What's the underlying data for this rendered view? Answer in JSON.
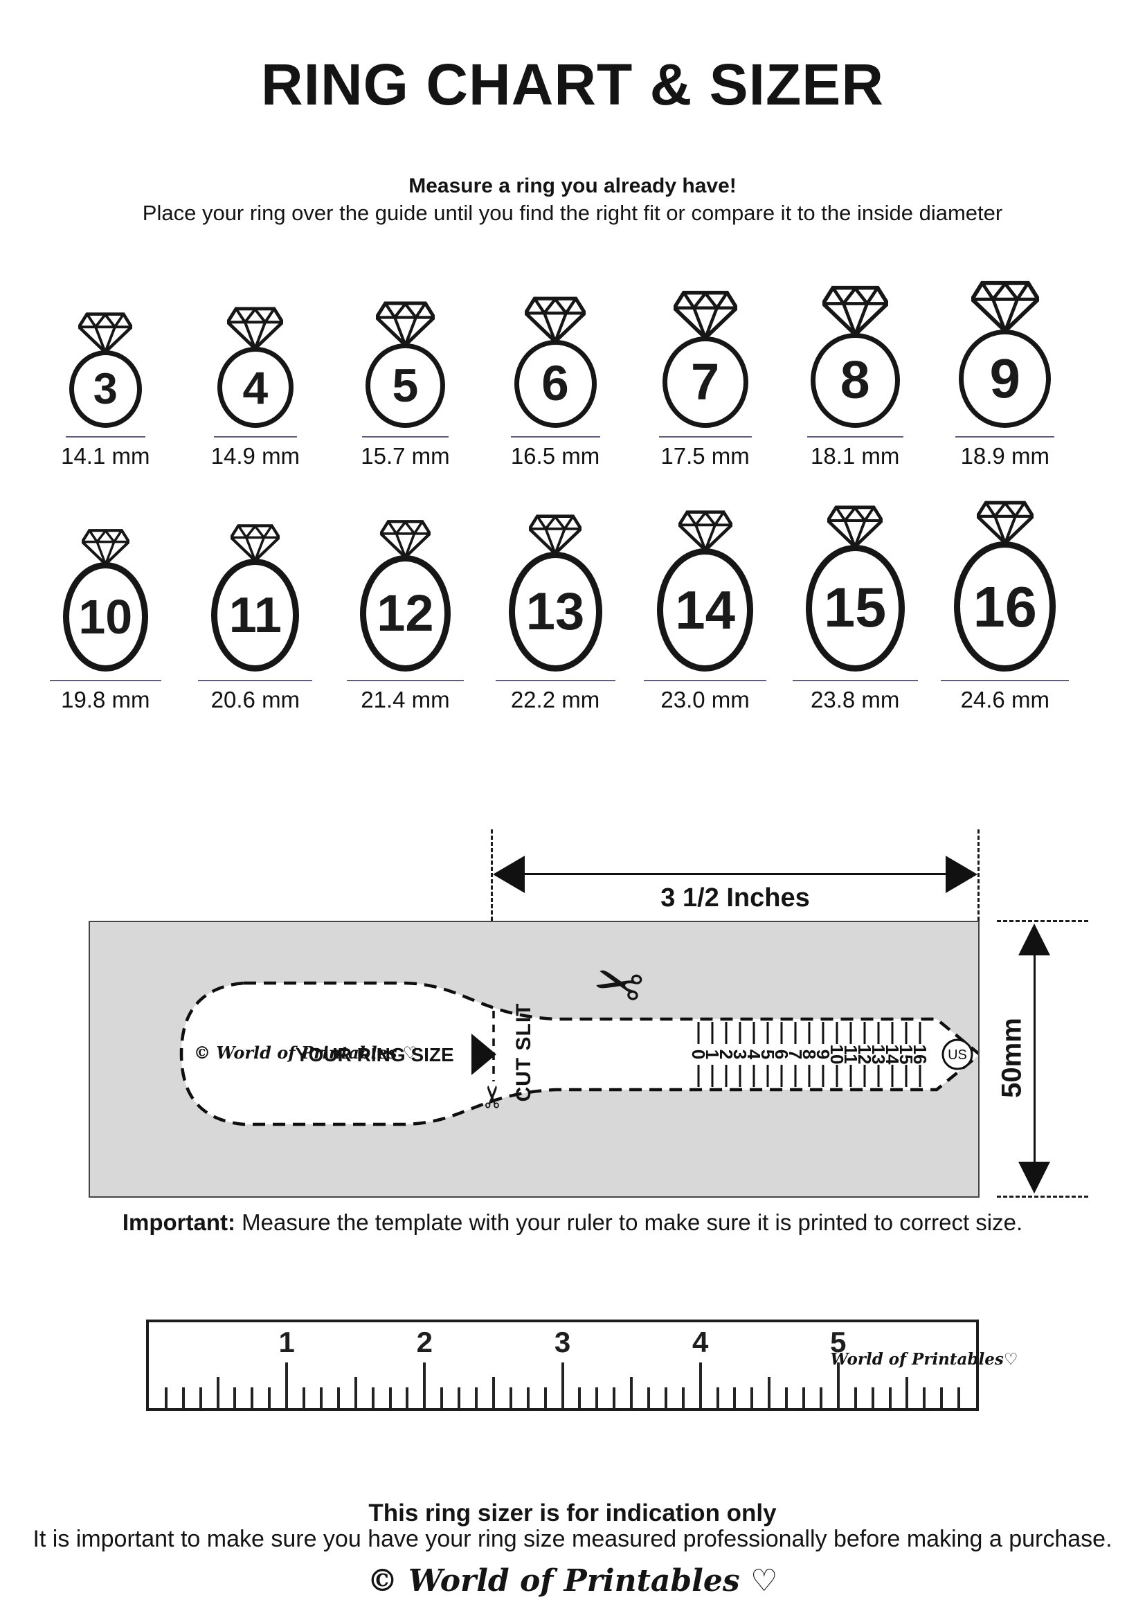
{
  "title": "RING CHART & SIZER",
  "intro": {
    "heading": "Measure a ring you already have!",
    "body": "Place your ring over the guide until you find the right fit or compare it to the inside diameter"
  },
  "ring_chart": {
    "rows": [
      {
        "rings": [
          {
            "size": "3",
            "diameter_label": "14.1 mm"
          },
          {
            "size": "4",
            "diameter_label": "14.9 mm"
          },
          {
            "size": "5",
            "diameter_label": "15.7 mm"
          },
          {
            "size": "6",
            "diameter_label": "16.5 mm"
          },
          {
            "size": "7",
            "diameter_label": "17.5 mm"
          },
          {
            "size": "8",
            "diameter_label": "18.1 mm"
          },
          {
            "size": "9",
            "diameter_label": "18.9 mm"
          }
        ]
      },
      {
        "rings": [
          {
            "size": "10",
            "diameter_label": "19.8 mm"
          },
          {
            "size": "11",
            "diameter_label": "20.6 mm"
          },
          {
            "size": "12",
            "diameter_label": "21.4 mm"
          },
          {
            "size": "13",
            "diameter_label": "22.2 mm"
          },
          {
            "size": "14",
            "diameter_label": "23.0 mm"
          },
          {
            "size": "15",
            "diameter_label": "23.8 mm"
          },
          {
            "size": "16",
            "diameter_label": "24.6 mm"
          }
        ]
      }
    ]
  },
  "sizer": {
    "width_label": "3 1/2 Inches",
    "height_label": "50mm",
    "brand": "© World of Printables ♡",
    "instruction": "YOUR RING SIZE",
    "cut_label": "CUT SLIT",
    "us_label": "US",
    "scale_numbers": [
      "0",
      "1",
      "2",
      "3",
      "4",
      "5",
      "6",
      "7",
      "8",
      "9",
      "10",
      "11",
      "12",
      "13",
      "14",
      "15",
      "16"
    ],
    "icons": {
      "scissors": "✂"
    }
  },
  "important": {
    "label": "Important:",
    "text": " Measure the template with your ruler to make sure it is printed to correct size."
  },
  "ruler": {
    "unit_numbers": [
      "1",
      "2",
      "3",
      "4",
      "5"
    ],
    "brand": "World of Printables♡"
  },
  "footer": {
    "heading": "This ring sizer is for indication only",
    "body": "It is important to make sure you have your ring size measured professionally before making a purchase.",
    "brand": "© World of Printables ♡"
  },
  "colors": {
    "ink": "#161616",
    "underline": "#5f5f7d",
    "template_bg": "#d8d8d8"
  }
}
